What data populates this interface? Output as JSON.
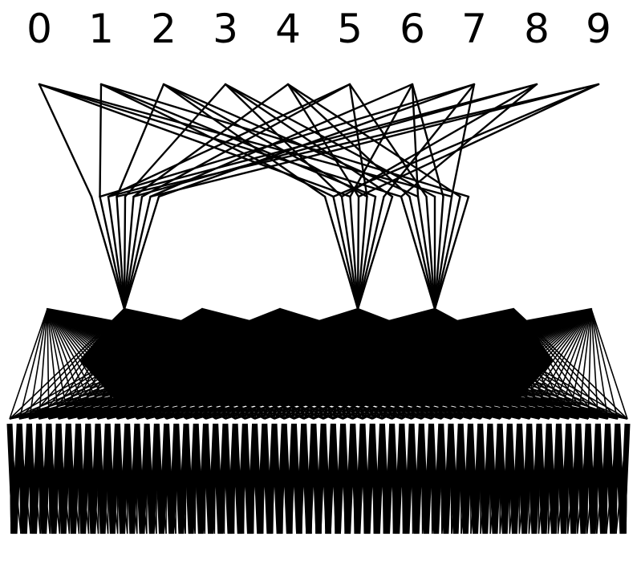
{
  "labels": [
    "0",
    "1",
    "2",
    "3",
    "4",
    "5",
    "6",
    "7",
    "8",
    "9"
  ],
  "colors": {
    "line": "#000000",
    "background": "#ffffff"
  }
}
